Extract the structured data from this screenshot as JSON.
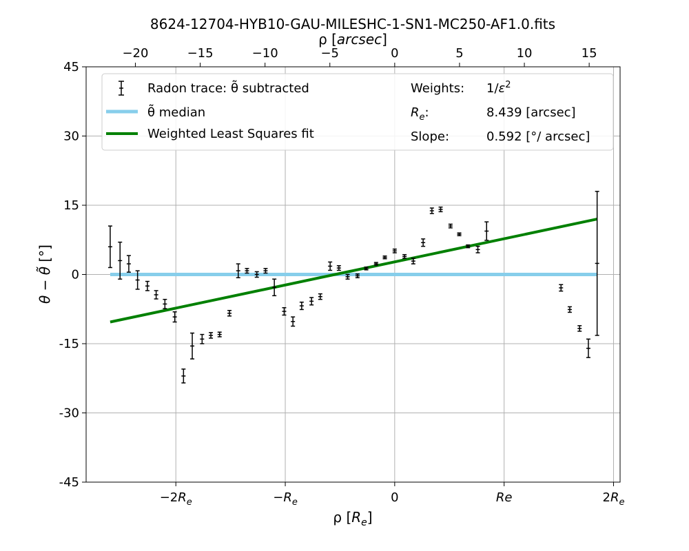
{
  "chart_data": {
    "type": "scatter",
    "title": "8624-12704-HYB10-GAU-MILESHC-1-SN1-MC250-AF1.0.fits",
    "xlabel": "ρ [R_e]",
    "ylabel": "θ − θ̃ [°]",
    "top_xlabel": "ρ [arcsec]",
    "x_unit": "R_e",
    "xlim": [
      -2.82,
      2.06
    ],
    "ylim": [
      -45,
      45
    ],
    "yticks": [
      45,
      30,
      15,
      0,
      -15,
      -30,
      -45
    ],
    "ytick_labels": [
      "45",
      "30",
      "15",
      "0",
      "-15",
      "-30",
      "-45"
    ],
    "xticks": [
      -2,
      -1,
      0,
      1,
      2
    ],
    "xtick_labels": [
      "−2R_e",
      "−R_e",
      "0",
      "Re",
      "2R_e"
    ],
    "top_xticks_arcsec": [
      -20,
      -15,
      -10,
      -5,
      0,
      5,
      10,
      15
    ],
    "top_xtick_labels": [
      "−20",
      "−15",
      "−10",
      "−5",
      "0",
      "5",
      "10",
      "15"
    ],
    "arcsec_per_Re": 8.439,
    "grid": true,
    "legend_position": "upper",
    "series": [
      {
        "name": "Radon trace: θ̃ subtracted",
        "kind": "errorbar",
        "color": "#000000",
        "points": [
          [
            -2.6,
            6.0,
            4.5
          ],
          [
            -2.51,
            3.0,
            4.0
          ],
          [
            -2.43,
            2.3,
            1.8
          ],
          [
            -2.35,
            -1.2,
            2.0
          ],
          [
            -2.26,
            -2.5,
            1.0
          ],
          [
            -2.18,
            -4.4,
            0.9
          ],
          [
            -2.1,
            -6.4,
            1.0
          ],
          [
            -2.01,
            -9.2,
            1.1
          ],
          [
            -1.93,
            -22.0,
            1.5
          ],
          [
            -1.85,
            -15.5,
            2.8
          ],
          [
            -1.76,
            -14.0,
            1.0
          ],
          [
            -1.68,
            -13.2,
            0.6
          ],
          [
            -1.6,
            -13.0,
            0.5
          ],
          [
            -1.51,
            -8.4,
            0.6
          ],
          [
            -1.43,
            0.8,
            1.5
          ],
          [
            -1.35,
            0.8,
            0.5
          ],
          [
            -1.26,
            0.0,
            0.6
          ],
          [
            -1.18,
            0.8,
            0.5
          ],
          [
            -1.1,
            -2.8,
            1.8
          ],
          [
            -1.01,
            -8.0,
            0.8
          ],
          [
            -0.93,
            -10.2,
            1.0
          ],
          [
            -0.85,
            -6.8,
            0.8
          ],
          [
            -0.76,
            -5.8,
            0.8
          ],
          [
            -0.68,
            -4.8,
            0.6
          ],
          [
            -0.59,
            1.8,
            0.9
          ],
          [
            -0.51,
            1.4,
            0.5
          ],
          [
            -0.43,
            -0.5,
            0.5
          ],
          [
            -0.34,
            -0.3,
            0.4
          ],
          [
            -0.26,
            1.3,
            0.3
          ],
          [
            -0.17,
            2.3,
            0.3
          ],
          [
            -0.09,
            3.7,
            0.3
          ],
          [
            0.0,
            5.1,
            0.4
          ],
          [
            0.09,
            3.9,
            0.4
          ],
          [
            0.17,
            2.9,
            0.6
          ],
          [
            0.26,
            6.9,
            0.8
          ],
          [
            0.34,
            13.8,
            0.6
          ],
          [
            0.42,
            14.1,
            0.5
          ],
          [
            0.51,
            10.5,
            0.4
          ],
          [
            0.59,
            8.7,
            0.3
          ],
          [
            0.67,
            6.1,
            0.3
          ],
          [
            0.76,
            5.4,
            0.7
          ],
          [
            0.84,
            9.4,
            2.0
          ],
          [
            1.52,
            -2.9,
            0.7
          ],
          [
            1.6,
            -7.6,
            0.6
          ],
          [
            1.69,
            -11.7,
            0.6
          ],
          [
            1.77,
            -16.0,
            2.0
          ],
          [
            1.85,
            2.4,
            15.6
          ]
        ]
      },
      {
        "name": "θ̃ median",
        "kind": "line",
        "color": "#87ceeb",
        "x": [
          -2.6,
          1.85
        ],
        "y": [
          0,
          0
        ]
      },
      {
        "name": "Weighted Least Squares fit",
        "kind": "line",
        "color": "#008000",
        "x": [
          -2.6,
          1.85
        ],
        "y": [
          -10.3,
          12.0
        ]
      }
    ],
    "info": [
      {
        "label": "Weights:",
        "value": "1/ε²"
      },
      {
        "label": "R_e:",
        "value": "8.439 [arcsec]"
      },
      {
        "label": "Slope:",
        "value": "0.592 [°/ arcsec]"
      }
    ]
  }
}
